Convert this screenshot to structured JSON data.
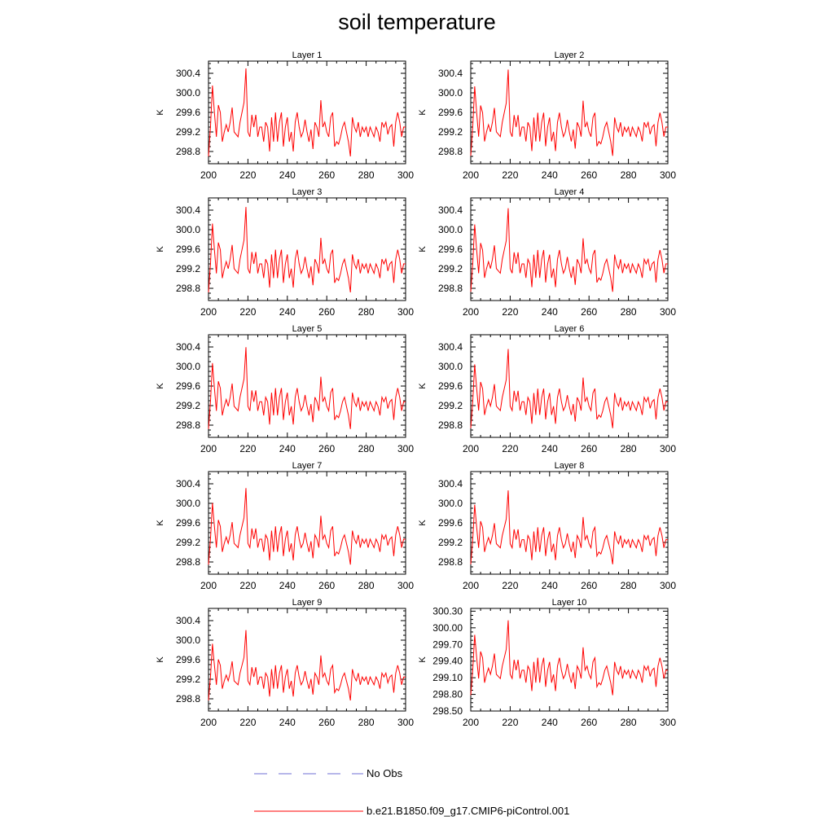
{
  "title": "soil temperature",
  "legend": [
    {
      "label": "No Obs",
      "color": "#6f6fd6",
      "dash": "dashed"
    },
    {
      "label": "b.e21.B1850.f09_g17.CMIP6-piControl.001",
      "color": "#ff0000",
      "dash": "solid"
    }
  ],
  "chart_data": [
    {
      "type": "line",
      "title": "Layer 1",
      "ylabel": "K",
      "xlim": [
        200,
        300
      ],
      "ylim": [
        298.55,
        300.65
      ],
      "xticks": [
        "200",
        "220",
        "240",
        "260",
        "280",
        "300"
      ],
      "yticks": [
        298.8,
        299.2,
        299.6,
        300.0,
        300.4
      ],
      "ytick_labels": [
        "298.8",
        "299.2",
        "299.6",
        "300.0",
        "300.4"
      ],
      "scale": 1.0,
      "offset": 0.0,
      "series": [
        {
          "name": "b.e21.B1850.f09_g17.CMIP6-piControl.001",
          "color": "#ff0000"
        }
      ]
    },
    {
      "type": "line",
      "title": "Layer 2",
      "ylabel": "K",
      "xlim": [
        200,
        300
      ],
      "ylim": [
        298.55,
        300.65
      ],
      "xticks": [
        "200",
        "220",
        "240",
        "260",
        "280",
        "300"
      ],
      "yticks": [
        298.8,
        299.2,
        299.6,
        300.0,
        300.4
      ],
      "ytick_labels": [
        "298.8",
        "299.2",
        "299.6",
        "300.0",
        "300.4"
      ],
      "scale": 0.98,
      "offset": 0.0,
      "series": [
        {
          "name": "b.e21.B1850.f09_g17.CMIP6-piControl.001",
          "color": "#ff0000"
        }
      ]
    },
    {
      "type": "line",
      "title": "Layer 3",
      "ylabel": "K",
      "xlim": [
        200,
        300
      ],
      "ylim": [
        298.55,
        300.65
      ],
      "xticks": [
        "200",
        "220",
        "240",
        "260",
        "280",
        "300"
      ],
      "yticks": [
        298.8,
        299.2,
        299.6,
        300.0,
        300.4
      ],
      "ytick_labels": [
        "298.8",
        "299.2",
        "299.6",
        "300.0",
        "300.4"
      ],
      "scale": 0.97,
      "offset": 0.0,
      "series": [
        {
          "name": "b.e21.B1850.f09_g17.CMIP6-piControl.001",
          "color": "#ff0000"
        }
      ]
    },
    {
      "type": "line",
      "title": "Layer 4",
      "ylabel": "K",
      "xlim": [
        200,
        300
      ],
      "ylim": [
        298.55,
        300.65
      ],
      "xticks": [
        "200",
        "220",
        "240",
        "260",
        "280",
        "300"
      ],
      "yticks": [
        298.8,
        299.2,
        299.6,
        300.0,
        300.4
      ],
      "ytick_labels": [
        "298.8",
        "299.2",
        "299.6",
        "300.0",
        "300.4"
      ],
      "scale": 0.95,
      "offset": 0.0,
      "series": [
        {
          "name": "b.e21.B1850.f09_g17.CMIP6-piControl.001",
          "color": "#ff0000"
        }
      ]
    },
    {
      "type": "line",
      "title": "Layer 5",
      "ylabel": "K",
      "xlim": [
        200,
        300
      ],
      "ylim": [
        298.55,
        300.65
      ],
      "xticks": [
        "200",
        "220",
        "240",
        "260",
        "280",
        "300"
      ],
      "yticks": [
        298.8,
        299.2,
        299.6,
        300.0,
        300.4
      ],
      "ytick_labels": [
        "298.8",
        "299.2",
        "299.6",
        "300.0",
        "300.4"
      ],
      "scale": 0.93,
      "offset": -0.02,
      "series": [
        {
          "name": "b.e21.B1850.f09_g17.CMIP6-piControl.001",
          "color": "#ff0000"
        }
      ]
    },
    {
      "type": "line",
      "title": "Layer 6",
      "ylabel": "K",
      "xlim": [
        200,
        300
      ],
      "ylim": [
        298.55,
        300.65
      ],
      "xticks": [
        "200",
        "220",
        "240",
        "260",
        "280",
        "300"
      ],
      "yticks": [
        298.8,
        299.2,
        299.6,
        300.0,
        300.4
      ],
      "ytick_labels": [
        "298.8",
        "299.2",
        "299.6",
        "300.0",
        "300.4"
      ],
      "scale": 0.9,
      "offset": -0.02,
      "series": [
        {
          "name": "b.e21.B1850.f09_g17.CMIP6-piControl.001",
          "color": "#ff0000"
        }
      ]
    },
    {
      "type": "line",
      "title": "Layer 7",
      "ylabel": "K",
      "xlim": [
        200,
        300
      ],
      "ylim": [
        298.55,
        300.65
      ],
      "xticks": [
        "200",
        "220",
        "240",
        "260",
        "280",
        "300"
      ],
      "yticks": [
        298.8,
        299.2,
        299.6,
        300.0,
        300.4
      ],
      "ytick_labels": [
        "298.8",
        "299.2",
        "299.6",
        "300.0",
        "300.4"
      ],
      "scale": 0.87,
      "offset": -0.03,
      "series": [
        {
          "name": "b.e21.B1850.f09_g17.CMIP6-piControl.001",
          "color": "#ff0000"
        }
      ]
    },
    {
      "type": "line",
      "title": "Layer 8",
      "ylabel": "K",
      "xlim": [
        200,
        300
      ],
      "ylim": [
        298.55,
        300.65
      ],
      "xticks": [
        "200",
        "220",
        "240",
        "260",
        "280",
        "300"
      ],
      "yticks": [
        298.8,
        299.2,
        299.6,
        300.0,
        300.4
      ],
      "ytick_labels": [
        "298.8",
        "299.2",
        "299.6",
        "300.0",
        "300.4"
      ],
      "scale": 0.84,
      "offset": -0.04,
      "series": [
        {
          "name": "b.e21.B1850.f09_g17.CMIP6-piControl.001",
          "color": "#ff0000"
        }
      ]
    },
    {
      "type": "line",
      "title": "Layer 9",
      "ylabel": "K",
      "xlim": [
        200,
        300
      ],
      "ylim": [
        298.55,
        300.65
      ],
      "xticks": [
        "200",
        "220",
        "240",
        "260",
        "280",
        "300"
      ],
      "yticks": [
        298.8,
        299.2,
        299.6,
        300.0,
        300.4
      ],
      "ytick_labels": [
        "298.8",
        "299.2",
        "299.6",
        "300.0",
        "300.4"
      ],
      "scale": 0.8,
      "offset": -0.05,
      "series": [
        {
          "name": "b.e21.B1850.f09_g17.CMIP6-piControl.001",
          "color": "#ff0000"
        }
      ]
    },
    {
      "type": "line",
      "title": "Layer 10",
      "ylabel": "K",
      "xlim": [
        200,
        300
      ],
      "ylim": [
        298.5,
        300.35
      ],
      "xticks": [
        "200",
        "220",
        "240",
        "260",
        "280",
        "300"
      ],
      "yticks": [
        298.5,
        298.8,
        299.1,
        299.4,
        299.7,
        300.0,
        300.3
      ],
      "ytick_labels": [
        "298.50",
        "298.80",
        "299.10",
        "299.40",
        "299.70",
        "300.00",
        "300.30"
      ],
      "scale": 0.75,
      "offset": -0.06,
      "series": [
        {
          "name": "b.e21.B1850.f09_g17.CMIP6-piControl.001",
          "color": "#ff0000"
        }
      ]
    }
  ],
  "base_series": {
    "x_start": 200,
    "x_step": 1,
    "y": [
      298.7,
      299.3,
      300.15,
      299.6,
      299.1,
      299.75,
      299.6,
      299.0,
      299.2,
      299.35,
      299.2,
      299.4,
      299.7,
      299.2,
      299.15,
      299.1,
      299.4,
      299.6,
      299.8,
      300.5,
      299.2,
      299.1,
      299.55,
      299.3,
      299.55,
      299.1,
      299.3,
      299.3,
      299.0,
      299.4,
      299.3,
      298.8,
      299.5,
      299.0,
      299.6,
      299.0,
      299.4,
      299.6,
      298.9,
      299.3,
      299.5,
      299.0,
      299.2,
      298.8,
      299.4,
      299.6,
      299.3,
      299.1,
      299.2,
      299.45,
      299.2,
      299.0,
      299.25,
      298.85,
      299.4,
      299.3,
      299.1,
      299.85,
      299.3,
      299.4,
      299.2,
      299.1,
      299.5,
      299.6,
      298.9,
      299.0,
      298.95,
      299.1,
      299.3,
      299.4,
      299.2,
      299.0,
      298.7,
      299.5,
      299.3,
      299.2,
      299.4,
      299.1,
      299.3,
      299.2,
      299.3,
      299.1,
      299.3,
      299.2,
      299.1,
      299.3,
      299.2,
      299.0,
      299.4,
      299.3,
      299.4,
      299.15,
      299.3,
      299.35,
      298.9,
      299.4,
      299.6,
      299.4,
      299.1,
      299.3,
      299.3
    ]
  }
}
